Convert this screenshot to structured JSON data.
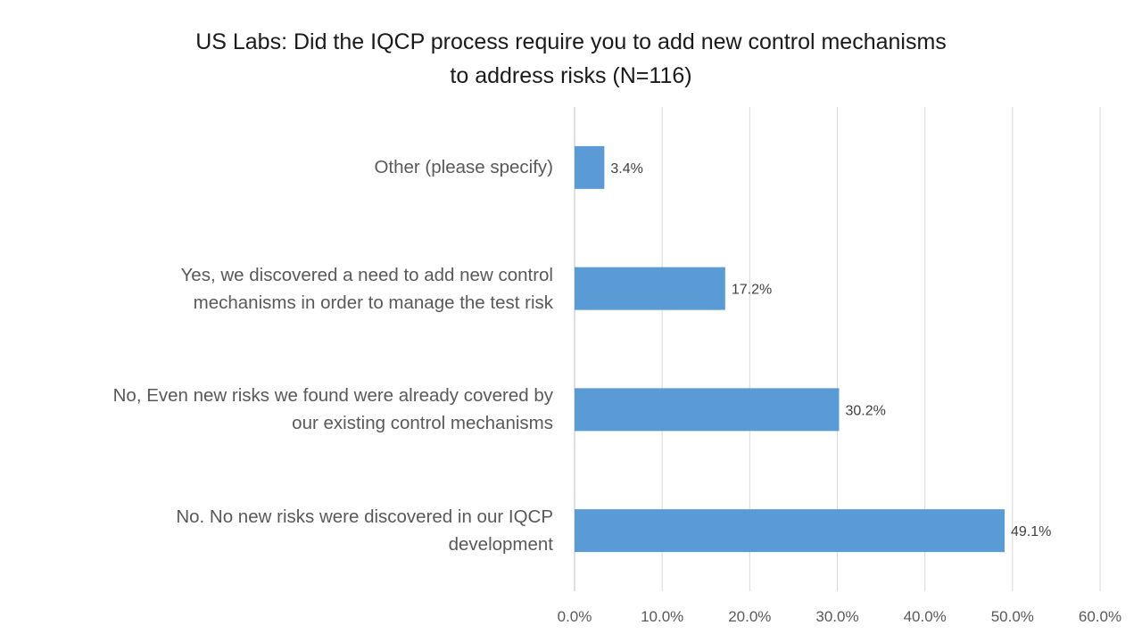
{
  "chart_data": {
    "type": "bar",
    "orientation": "horizontal",
    "title": [
      "US Labs: Did the IQCP process require you to add new control mechanisms",
      "to address risks (N=116)"
    ],
    "categories": [
      [
        "Other (please specify)"
      ],
      [
        "Yes, we discovered a need to add new control",
        "mechanisms in order to manage the test risk"
      ],
      [
        "No, Even new risks we found were already covered by",
        "our existing control mechanisms"
      ],
      [
        "No. No new risks were discovered in our IQCP",
        "development"
      ]
    ],
    "values": [
      3.4,
      17.2,
      30.2,
      49.1
    ],
    "data_labels": [
      "3.4%",
      "17.2%",
      "30.2%",
      "49.1%"
    ],
    "xlim": [
      0,
      60
    ],
    "xticks": [
      "0.0%",
      "10.0%",
      "20.0%",
      "30.0%",
      "40.0%",
      "50.0%",
      "60.0%"
    ],
    "grid": true,
    "legend": "none",
    "bar_color": "#5B9BD5",
    "xlabel": "",
    "ylabel": ""
  }
}
